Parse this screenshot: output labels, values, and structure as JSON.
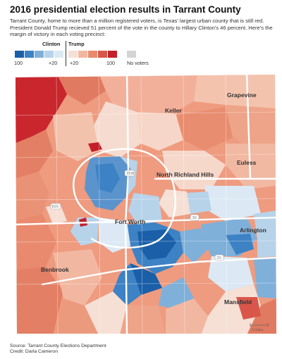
{
  "header": {
    "title": "2016 presidential election results in Tarrant County",
    "description": "Tarrant County, home to more than a million registered voters, is Texas' largest urban county that is still red. President Donald Trump recieved 51 percent of the vote in the county to Hillary Clinton's 46 percent. Here's the margin of victory in each voting precinct:"
  },
  "legend": {
    "clinton_label": "Clinton",
    "trump_label": "Trump",
    "ticks": {
      "clinton_max": "100",
      "clinton_mid": "+20",
      "trump_mid": "+20",
      "trump_max": "100",
      "no_voters": "No voters"
    },
    "clinton_colors": [
      "#1a5fa8",
      "#3d82c4",
      "#7fb0da",
      "#b7d3ea",
      "#dce9f4"
    ],
    "trump_colors": [
      "#f6dfd4",
      "#f2b7a0",
      "#e98a6f",
      "#d9574a",
      "#c3202a"
    ],
    "no_voters_color": "#d4d4d4"
  },
  "map": {
    "places": {
      "grapevine": "Grapevine",
      "keller": "Keller",
      "euless": "Euless",
      "north_richland_hills": "North Richland Hills",
      "fort_worth": "Fort Worth",
      "arlington": "Arlington",
      "benbrook": "Benbrook",
      "mansfield": "Mansfield"
    },
    "highways": {
      "i35w": "35W",
      "i820": "820",
      "i30": "30",
      "i20": "20"
    },
    "scale_label": "5 miles"
  },
  "footer": {
    "source": "Source: Tarrant County Elections Department",
    "credit": "Credit: Darla Cameron"
  }
}
